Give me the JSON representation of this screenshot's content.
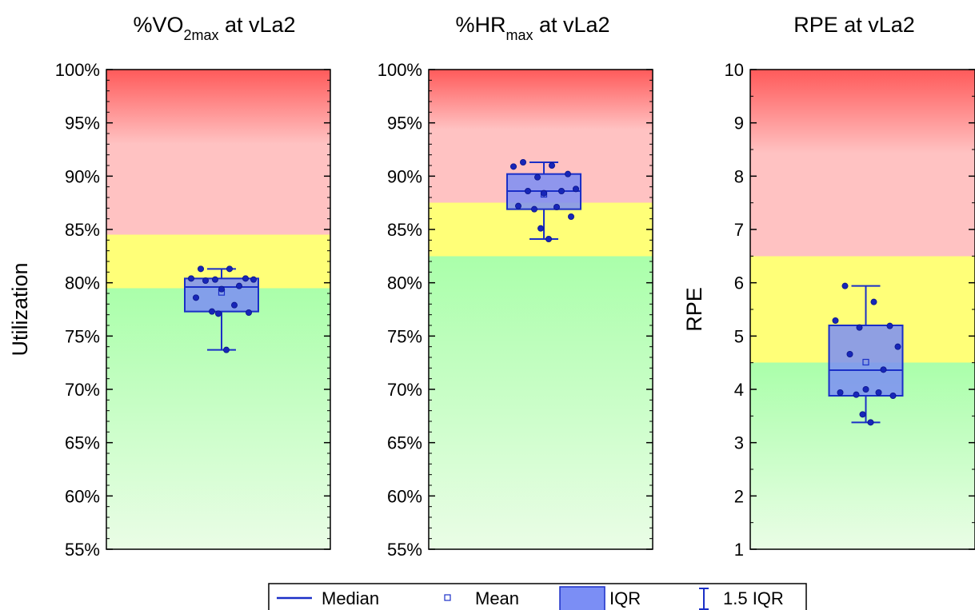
{
  "legend": {
    "median": "Median",
    "mean": "Mean",
    "iqr": "IQR",
    "whisker": "1.5 IQR"
  },
  "colors": {
    "box_fill": "#7b8ef5",
    "box_stroke": "#1a2fc7",
    "point": "#1726b8",
    "zone_red": "#ff5a5a",
    "zone_pink": "#ffc2c2",
    "zone_yellow": "#ffff78",
    "zone_green": "#aaffaa",
    "zone_light_green": "#eafde6"
  },
  "chart_data": [
    {
      "type": "box",
      "title": "%VO",
      "title_sub": "2max",
      "title_suffix": " at vLa2",
      "ylabel": "Utilization",
      "ylim": [
        55,
        100
      ],
      "y_ticks": [
        "55%",
        "60%",
        "65%",
        "70%",
        "75%",
        "80%",
        "85%",
        "90%",
        "95%",
        "100%"
      ],
      "zones": {
        "yellow_from": 79.5,
        "yellow_to": 84.5
      },
      "box": {
        "q1": 77.3,
        "median": 79.6,
        "q3": 80.4,
        "mean": 79.1,
        "whisker_low": 73.7,
        "whisker_high": 81.3
      },
      "points": [
        81.3,
        81.3,
        80.4,
        80.4,
        80.3,
        80.3,
        80.2,
        79.7,
        79.4,
        78.6,
        77.9,
        77.3,
        77.2,
        77.1,
        73.7
      ]
    },
    {
      "type": "box",
      "title": "%HR",
      "title_sub": "max",
      "title_suffix": " at vLa2",
      "ylabel": "",
      "ylim": [
        55,
        100
      ],
      "y_ticks": [
        "55%",
        "60%",
        "65%",
        "70%",
        "75%",
        "80%",
        "85%",
        "90%",
        "95%",
        "100%"
      ],
      "zones": {
        "yellow_from": 82.5,
        "yellow_to": 87.5
      },
      "box": {
        "q1": 86.9,
        "median": 88.6,
        "q3": 90.2,
        "mean": 88.3,
        "whisker_low": 84.1,
        "whisker_high": 91.3
      },
      "points": [
        91.3,
        91.0,
        90.9,
        90.2,
        89.9,
        88.8,
        88.6,
        88.6,
        88.4,
        87.2,
        87.1,
        86.9,
        86.2,
        85.1,
        84.1
      ]
    },
    {
      "type": "box",
      "title": "RPE at vLa2",
      "title_sub": "",
      "title_suffix": "",
      "ylabel": "RPE",
      "ylim": [
        1,
        10
      ],
      "y_ticks": [
        "1",
        "2",
        "3",
        "4",
        "5",
        "6",
        "7",
        "8",
        "9",
        "10"
      ],
      "zones": {
        "yellow_from": 4.5,
        "yellow_to": 6.5
      },
      "box": {
        "q1": 3.88,
        "median": 4.36,
        "q3": 5.2,
        "mean": 4.51,
        "whisker_low": 3.38,
        "whisker_high": 5.94
      },
      "points": [
        5.94,
        5.64,
        5.29,
        5.19,
        5.16,
        4.8,
        4.66,
        4.37,
        4.0,
        3.94,
        3.94,
        3.9,
        3.88,
        3.53,
        3.38
      ]
    }
  ]
}
